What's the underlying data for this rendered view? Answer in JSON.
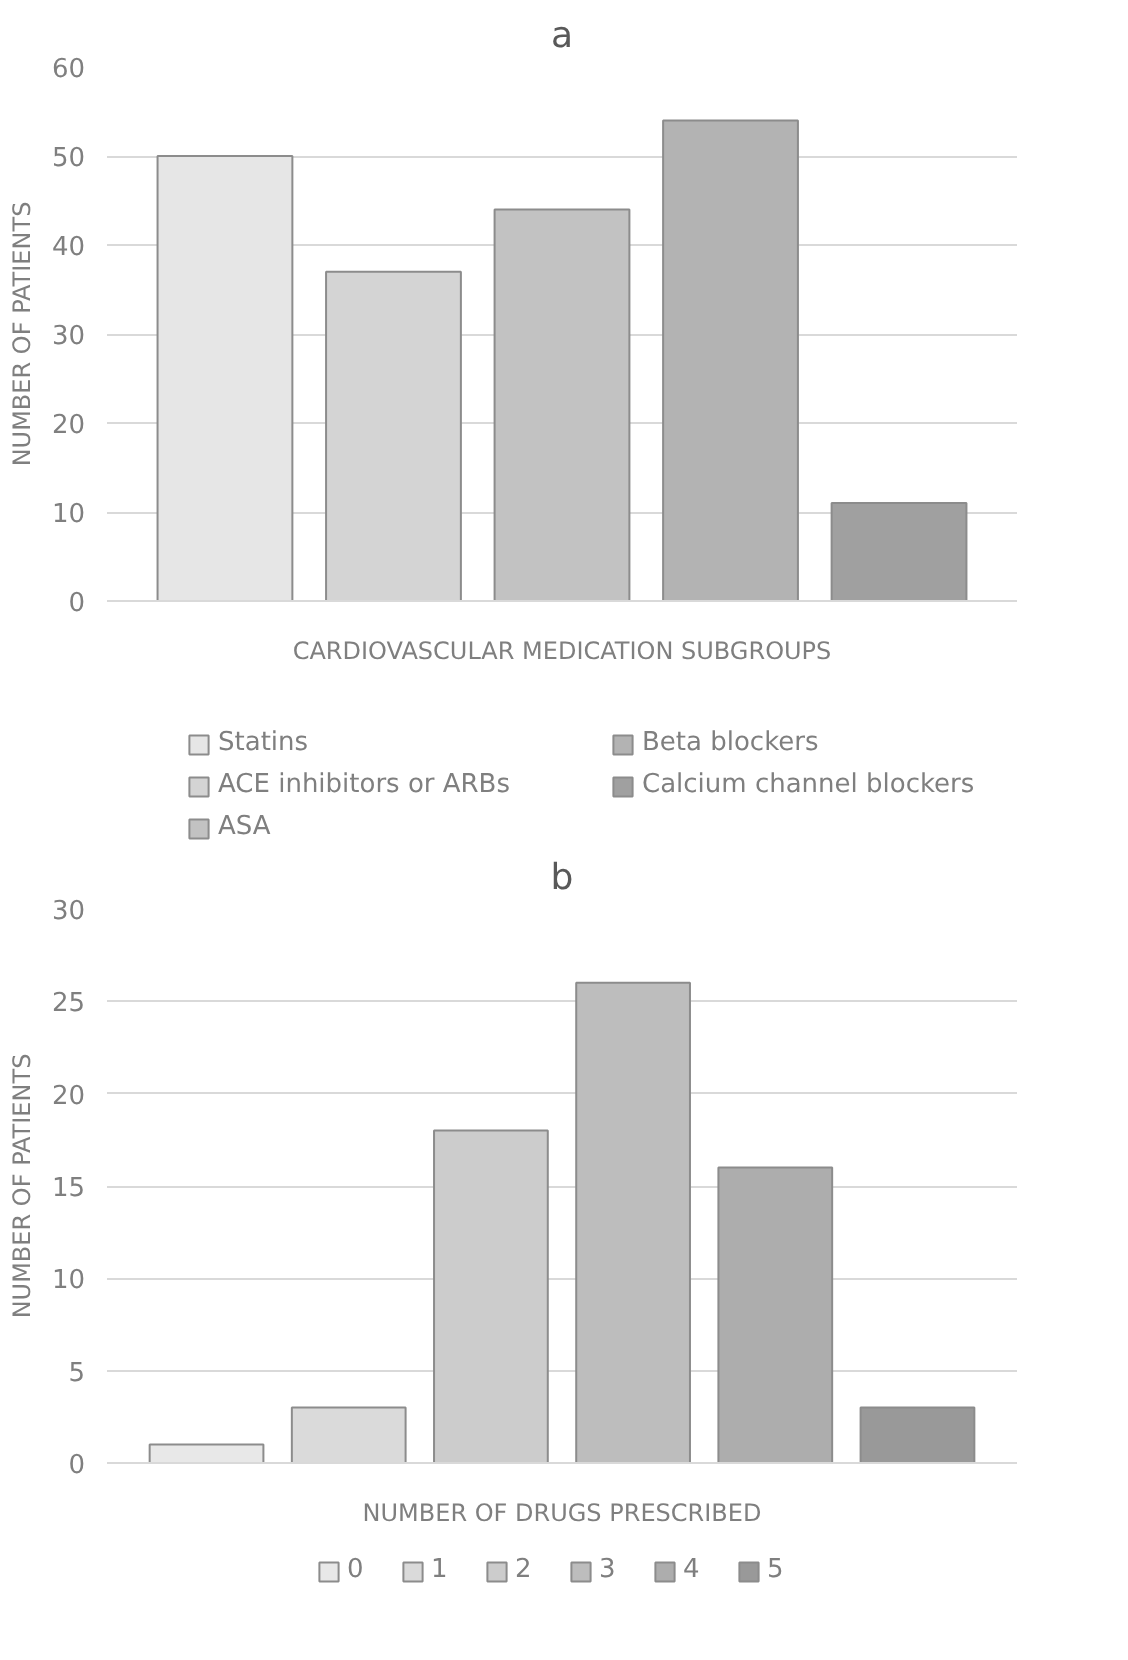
{
  "chart_data": [
    {
      "type": "bar",
      "title": "a",
      "xlabel": "CARDIOVASCULAR MEDICATION SUBGROUPS",
      "ylabel": "NUMBER OF PATIENTS",
      "categories": [
        null,
        null,
        null,
        null,
        null
      ],
      "ylim": [
        0,
        60
      ],
      "yticks": [
        0,
        10,
        20,
        30,
        40,
        50,
        60
      ],
      "grid": "y",
      "legend": "bottom",
      "series": [
        {
          "name": "Statins",
          "color": "#e6e6e6",
          "values": [
            50,
            null,
            null,
            null,
            null
          ]
        },
        {
          "name": "ACE inhibitors or ARBs",
          "color": "#d4d4d4",
          "values": [
            null,
            37,
            null,
            null,
            null
          ]
        },
        {
          "name": "ASA",
          "color": "#c2c2c2",
          "values": [
            null,
            null,
            44,
            null,
            null
          ]
        },
        {
          "name": "Beta blockers",
          "color": "#b3b3b3",
          "values": [
            null,
            null,
            null,
            54,
            null
          ]
        },
        {
          "name": "Calcium channel blockers",
          "color": "#a0a0a0",
          "values": [
            null,
            null,
            null,
            null,
            11
          ]
        }
      ]
    },
    {
      "type": "bar",
      "title": "b",
      "xlabel": "NUMBER OF DRUGS PRESCRIBED",
      "ylabel": "NUMBER OF PATIENTS",
      "categories": [
        null,
        null,
        null,
        null,
        null,
        null
      ],
      "ylim": [
        0,
        30
      ],
      "yticks": [
        0,
        5,
        10,
        15,
        20,
        25,
        30
      ],
      "grid": "y",
      "legend": "bottom",
      "series": [
        {
          "name": "0",
          "color": "#e8e8e8",
          "values": [
            1,
            null,
            null,
            null,
            null,
            null
          ]
        },
        {
          "name": "1",
          "color": "#dadada",
          "values": [
            null,
            3,
            null,
            null,
            null,
            null
          ]
        },
        {
          "name": "2",
          "color": "#cccccc",
          "values": [
            null,
            null,
            18,
            null,
            null,
            null
          ]
        },
        {
          "name": "3",
          "color": "#bdbdbd",
          "values": [
            null,
            null,
            null,
            26,
            null,
            null
          ]
        },
        {
          "name": "4",
          "color": "#adadad",
          "values": [
            null,
            null,
            null,
            null,
            16,
            null
          ]
        },
        {
          "name": "5",
          "color": "#999999",
          "values": [
            null,
            null,
            null,
            null,
            null,
            3
          ]
        }
      ]
    }
  ]
}
